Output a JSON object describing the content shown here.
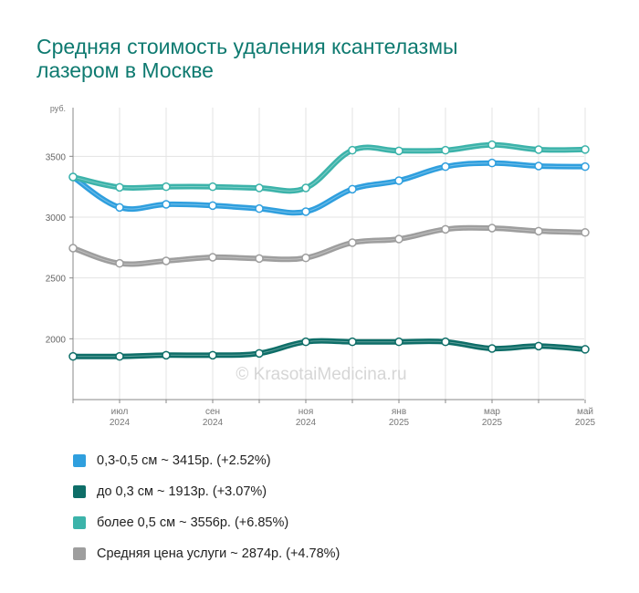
{
  "title": {
    "line1": "Средняя стоимость удаления ксантелазмы",
    "line2": "лазером в Москве"
  },
  "watermark": "© KrasotaiMedicina.ru",
  "chart_data": {
    "type": "line",
    "y_unit": "руб.",
    "ylim": [
      1500,
      3900
    ],
    "yticks": [
      2000,
      2500,
      3000,
      3500
    ],
    "x": [
      "2024-06",
      "2024-07",
      "2024-08",
      "2024-09",
      "2024-10",
      "2024-11",
      "2024-12",
      "2025-01",
      "2025-02",
      "2025-03",
      "2025-04",
      "2025-05"
    ],
    "x_tick_labels": [
      {
        "x": "2024-07",
        "month": "июл",
        "year": "2024"
      },
      {
        "x": "2024-09",
        "month": "сен",
        "year": "2024"
      },
      {
        "x": "2024-11",
        "month": "ноя",
        "year": "2024"
      },
      {
        "x": "2025-01",
        "month": "янв",
        "year": "2025"
      },
      {
        "x": "2025-03",
        "month": "мар",
        "year": "2025"
      },
      {
        "x": "2025-05",
        "month": "май",
        "year": "2025"
      }
    ],
    "grid": true,
    "series": [
      {
        "id": "s1",
        "color": "#2f9fde",
        "values": [
          3330,
          3080,
          3105,
          3095,
          3070,
          3045,
          3230,
          3300,
          3415,
          3445,
          3420,
          3415
        ]
      },
      {
        "id": "s2",
        "color": "#0e6e68",
        "values": [
          1855,
          1855,
          1865,
          1865,
          1880,
          1975,
          1975,
          1975,
          1975,
          1920,
          1940,
          1913
        ]
      },
      {
        "id": "s3",
        "color": "#3cb3aa",
        "values": [
          3330,
          3245,
          3250,
          3250,
          3240,
          3240,
          3550,
          3545,
          3550,
          3595,
          3555,
          3556
        ]
      },
      {
        "id": "s4",
        "color": "#9e9e9e",
        "values": [
          2745,
          2620,
          2640,
          2670,
          2660,
          2665,
          2790,
          2820,
          2900,
          2910,
          2885,
          2874
        ]
      }
    ]
  },
  "legend": [
    {
      "label": "0,3-0,5 см ~ 3415р. (+2.52%)",
      "color": "#2f9fde"
    },
    {
      "label": "до 0,3 см ~ 1913р. (+3.07%)",
      "color": "#0e6e68"
    },
    {
      "label": "более 0,5 см ~ 3556р. (+6.85%)",
      "color": "#3cb3aa"
    },
    {
      "label": "Средняя цена услуги ~ 2874р. (+4.78%)",
      "color": "#9e9e9e"
    }
  ]
}
